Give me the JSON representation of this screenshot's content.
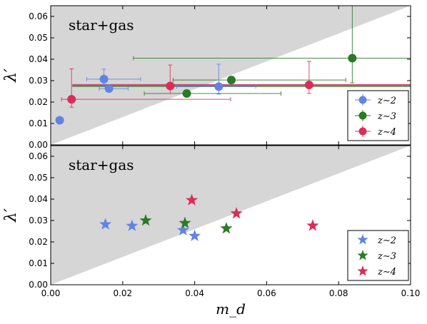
{
  "chart_data": [
    {
      "type": "scatter",
      "panel_label": "star+gas",
      "xlabel": "",
      "ylabel": "λ′",
      "xlim": [
        0.0,
        0.1
      ],
      "ylim": [
        0.0,
        0.065
      ],
      "xticks": [
        0.0,
        0.02,
        0.04,
        0.06,
        0.08,
        0.1
      ],
      "yticks": [
        0.0,
        0.01,
        0.02,
        0.03,
        0.04,
        0.05,
        0.06
      ],
      "show_xtick_labels": false,
      "shaded_region": "λ′ > 0.65·m_d",
      "marker": "circle",
      "legend_position": "lower-right",
      "series": [
        {
          "name": "z∼2",
          "color": "#6283e2",
          "points": [
            {
              "x": 0.0025,
              "y": 0.0115
            },
            {
              "x": 0.0148,
              "y": 0.0307,
              "xerr": [
                0.0048,
                0.0102
              ],
              "yerr": [
                0.0025,
                0.0047
              ]
            },
            {
              "x": 0.0162,
              "y": 0.0263,
              "xerr": [
                0.0027,
                0.0053
              ]
            },
            {
              "x": 0.0467,
              "y": 0.0272,
              "xerr": [
                0.0117,
                0.0103
              ],
              "yerr": [
                0.0035,
                0.0105
              ]
            }
          ],
          "trend_y": 0.0278
        },
        {
          "name": "z∼3",
          "color": "#2a7a26",
          "points": [
            {
              "x": 0.0378,
              "y": 0.024,
              "xerr": [
                0.0118,
                0.0262
              ]
            },
            {
              "x": 0.0502,
              "y": 0.0303,
              "xerr": [
                0.0162,
                0.0318
              ]
            },
            {
              "x": 0.0838,
              "y": 0.0405,
              "xerr": [
                0.0608,
                0.0162
              ],
              "yerr": [
                0.0115,
                0.0245
              ]
            }
          ],
          "trend_y": 0.0274
        },
        {
          "name": "z∼4",
          "color": "#dc2c58",
          "points": [
            {
              "x": 0.0058,
              "y": 0.0213,
              "xerr": [
                0.0028,
                0.0442
              ],
              "yerr": [
                0.0037,
                0.0142
              ]
            },
            {
              "x": 0.0332,
              "y": 0.0275,
              "yerr": [
                0.0035,
                0.0098
              ]
            },
            {
              "x": 0.0718,
              "y": 0.028,
              "yerr": [
                0.004,
                0.011
              ]
            }
          ],
          "trend_y": 0.0281
        }
      ]
    },
    {
      "type": "scatter",
      "panel_label": "star+gas",
      "xlabel": "m_d",
      "ylabel": "λ′",
      "xlim": [
        0.0,
        0.1
      ],
      "ylim": [
        0.0,
        0.065
      ],
      "xticks": [
        0.0,
        0.02,
        0.04,
        0.06,
        0.08,
        0.1
      ],
      "yticks": [
        0.0,
        0.01,
        0.02,
        0.03,
        0.04,
        0.05,
        0.06
      ],
      "show_xtick_labels": true,
      "shaded_region": "λ′ > 0.65·m_d",
      "marker": "star",
      "legend_position": "lower-right",
      "series": [
        {
          "name": "z∼2",
          "color": "#6283e2",
          "points": [
            {
              "x": 0.0152,
              "y": 0.0282
            },
            {
              "x": 0.0226,
              "y": 0.0275
            },
            {
              "x": 0.0368,
              "y": 0.0255
            },
            {
              "x": 0.04,
              "y": 0.0228
            }
          ]
        },
        {
          "name": "z∼3",
          "color": "#2a7a26",
          "points": [
            {
              "x": 0.0264,
              "y": 0.03
            },
            {
              "x": 0.0373,
              "y": 0.0288
            },
            {
              "x": 0.0488,
              "y": 0.0263
            }
          ]
        },
        {
          "name": "z∼4",
          "color": "#dc2c58",
          "points": [
            {
              "x": 0.0392,
              "y": 0.0395
            },
            {
              "x": 0.0516,
              "y": 0.0333
            },
            {
              "x": 0.0728,
              "y": 0.0276
            }
          ]
        }
      ]
    }
  ]
}
